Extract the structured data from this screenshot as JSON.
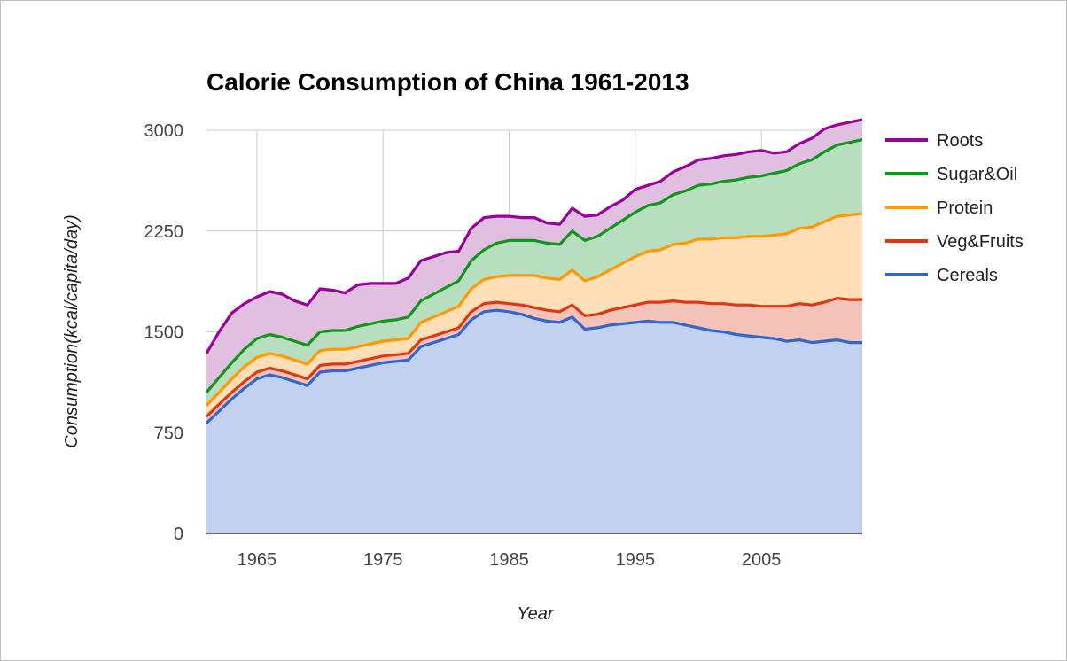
{
  "chart_data": {
    "type": "area",
    "stacked": true,
    "title": "Calorie Consumption of China 1961-2013",
    "xlabel": "Year",
    "ylabel": "Consumption(kcal/capita/day)",
    "xlim": [
      1961,
      2013
    ],
    "ylim": [
      0,
      3000
    ],
    "x_ticks": [
      1965,
      1975,
      1985,
      1995,
      2005
    ],
    "y_ticks": [
      0,
      750,
      1500,
      2250,
      3000
    ],
    "grid": true,
    "legend_position": "right",
    "x": [
      1961,
      1962,
      1963,
      1964,
      1965,
      1966,
      1967,
      1968,
      1969,
      1970,
      1971,
      1972,
      1973,
      1974,
      1975,
      1976,
      1977,
      1978,
      1979,
      1980,
      1981,
      1982,
      1983,
      1984,
      1985,
      1986,
      1987,
      1988,
      1989,
      1990,
      1991,
      1992,
      1993,
      1994,
      1995,
      1996,
      1997,
      1998,
      1999,
      2000,
      2001,
      2002,
      2003,
      2004,
      2005,
      2006,
      2007,
      2008,
      2009,
      2010,
      2011,
      2012,
      2013
    ],
    "series": [
      {
        "name": "Cereals",
        "color": "#3366cc",
        "fill": "#c3d1f0",
        "values": [
          820,
          910,
          1000,
          1080,
          1150,
          1180,
          1160,
          1130,
          1100,
          1200,
          1210,
          1210,
          1230,
          1250,
          1270,
          1280,
          1290,
          1390,
          1420,
          1450,
          1480,
          1590,
          1650,
          1660,
          1650,
          1630,
          1600,
          1580,
          1570,
          1610,
          1520,
          1530,
          1550,
          1560,
          1570,
          1580,
          1570,
          1570,
          1550,
          1530,
          1510,
          1500,
          1480,
          1470,
          1460,
          1450,
          1430,
          1440,
          1420,
          1430,
          1440,
          1420,
          1420
        ]
      },
      {
        "name": "Veg&Fruits",
        "color": "#dc3912",
        "fill": "#f3c2b8",
        "values": [
          50,
          50,
          50,
          50,
          50,
          50,
          50,
          50,
          50,
          50,
          50,
          50,
          50,
          50,
          50,
          50,
          50,
          50,
          50,
          50,
          50,
          60,
          60,
          60,
          60,
          70,
          80,
          80,
          80,
          90,
          100,
          100,
          110,
          120,
          130,
          140,
          150,
          160,
          170,
          190,
          200,
          210,
          220,
          230,
          230,
          240,
          260,
          270,
          280,
          290,
          310,
          320,
          320
        ]
      },
      {
        "name": "Protein",
        "color": "#ff9900",
        "fill": "#ffdfb8",
        "values": [
          80,
          90,
          100,
          110,
          110,
          110,
          110,
          110,
          110,
          110,
          110,
          110,
          110,
          110,
          110,
          110,
          110,
          130,
          140,
          150,
          160,
          170,
          180,
          190,
          210,
          220,
          240,
          240,
          240,
          260,
          260,
          280,
          300,
          330,
          360,
          380,
          390,
          420,
          440,
          470,
          480,
          490,
          500,
          510,
          520,
          530,
          540,
          560,
          580,
          600,
          610,
          630,
          640
        ]
      },
      {
        "name": "Sugar&Oil",
        "color": "#109618",
        "fill": "#b7dfbf",
        "values": [
          100,
          110,
          120,
          130,
          140,
          140,
          140,
          140,
          140,
          140,
          140,
          140,
          150,
          150,
          150,
          150,
          160,
          160,
          170,
          180,
          190,
          210,
          220,
          250,
          260,
          260,
          260,
          260,
          260,
          290,
          300,
          300,
          310,
          320,
          330,
          340,
          350,
          370,
          390,
          400,
          410,
          420,
          430,
          440,
          450,
          460,
          470,
          480,
          500,
          520,
          530,
          540,
          550
        ]
      },
      {
        "name": "Roots",
        "color": "#990099",
        "fill": "#e0bfe0",
        "values": [
          290,
          340,
          370,
          340,
          310,
          320,
          320,
          300,
          300,
          320,
          300,
          280,
          310,
          300,
          280,
          270,
          290,
          300,
          280,
          260,
          220,
          240,
          240,
          200,
          180,
          170,
          170,
          150,
          150,
          170,
          180,
          160,
          160,
          150,
          170,
          150,
          160,
          170,
          180,
          190,
          190,
          190,
          190,
          190,
          190,
          150,
          140,
          150,
          160,
          170,
          150,
          150,
          150
        ]
      }
    ]
  }
}
